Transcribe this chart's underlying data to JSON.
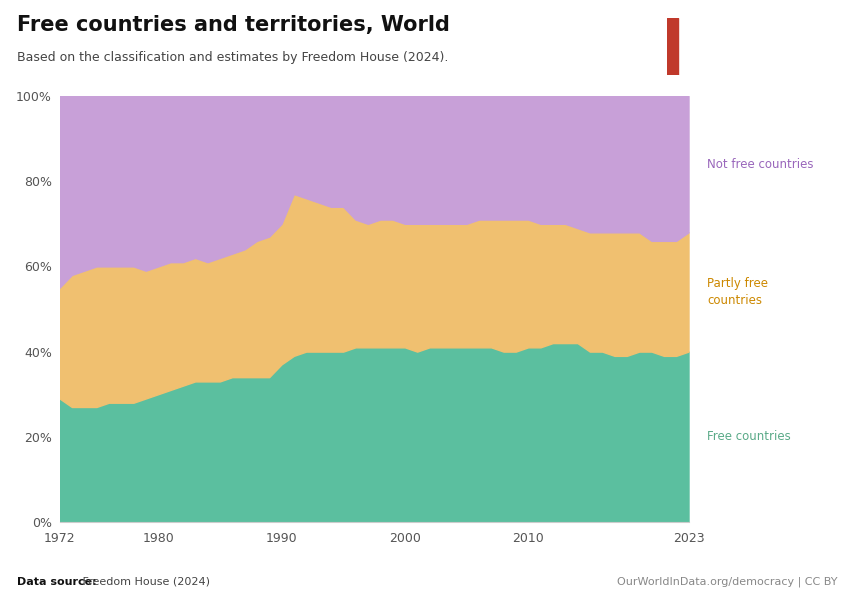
{
  "title": "Free countries and territories, World",
  "subtitle": "Based on the classification and estimates by Freedom House (2024).",
  "datasource_bold": "Data source:",
  "datasource_rest": " Freedom House (2024)",
  "website": "OurWorldInData.org/democracy | CC BY",
  "years": [
    1972,
    1973,
    1974,
    1975,
    1976,
    1977,
    1978,
    1979,
    1980,
    1981,
    1982,
    1983,
    1984,
    1985,
    1986,
    1987,
    1988,
    1989,
    1990,
    1991,
    1992,
    1993,
    1994,
    1995,
    1996,
    1997,
    1998,
    1999,
    2000,
    2001,
    2002,
    2003,
    2004,
    2005,
    2006,
    2007,
    2008,
    2009,
    2010,
    2011,
    2012,
    2013,
    2014,
    2015,
    2016,
    2017,
    2018,
    2019,
    2020,
    2021,
    2022,
    2023
  ],
  "free": [
    29,
    27,
    27,
    27,
    28,
    28,
    28,
    29,
    30,
    31,
    32,
    33,
    33,
    33,
    34,
    34,
    34,
    34,
    37,
    39,
    40,
    40,
    40,
    40,
    41,
    41,
    41,
    41,
    41,
    40,
    41,
    41,
    41,
    41,
    41,
    41,
    40,
    40,
    41,
    41,
    42,
    42,
    42,
    40,
    40,
    39,
    39,
    40,
    40,
    39,
    39,
    40
  ],
  "partly_free": [
    26,
    31,
    32,
    33,
    32,
    32,
    32,
    30,
    30,
    30,
    29,
    29,
    28,
    29,
    29,
    30,
    32,
    33,
    33,
    38,
    36,
    35,
    34,
    34,
    30,
    29,
    30,
    30,
    29,
    30,
    29,
    29,
    29,
    29,
    30,
    30,
    31,
    31,
    30,
    29,
    28,
    28,
    27,
    28,
    28,
    29,
    29,
    28,
    26,
    27,
    27,
    28
  ],
  "not_free": [
    45,
    42,
    41,
    40,
    40,
    40,
    40,
    41,
    40,
    39,
    39,
    38,
    39,
    38,
    37,
    36,
    34,
    33,
    30,
    23,
    24,
    25,
    26,
    26,
    29,
    30,
    29,
    29,
    30,
    30,
    30,
    30,
    30,
    30,
    29,
    29,
    29,
    29,
    29,
    30,
    30,
    30,
    31,
    32,
    32,
    32,
    32,
    32,
    34,
    34,
    34,
    32
  ],
  "free_color": "#5bbf9f",
  "partly_free_color": "#f0c070",
  "not_free_color": "#c8a0d8",
  "label_free": "Free countries",
  "label_partly": "Partly free\ncountries",
  "label_not": "Not free countries",
  "bg_color": "#ffffff",
  "logo_bg": "#1a3a5c",
  "logo_accent": "#c0392b"
}
